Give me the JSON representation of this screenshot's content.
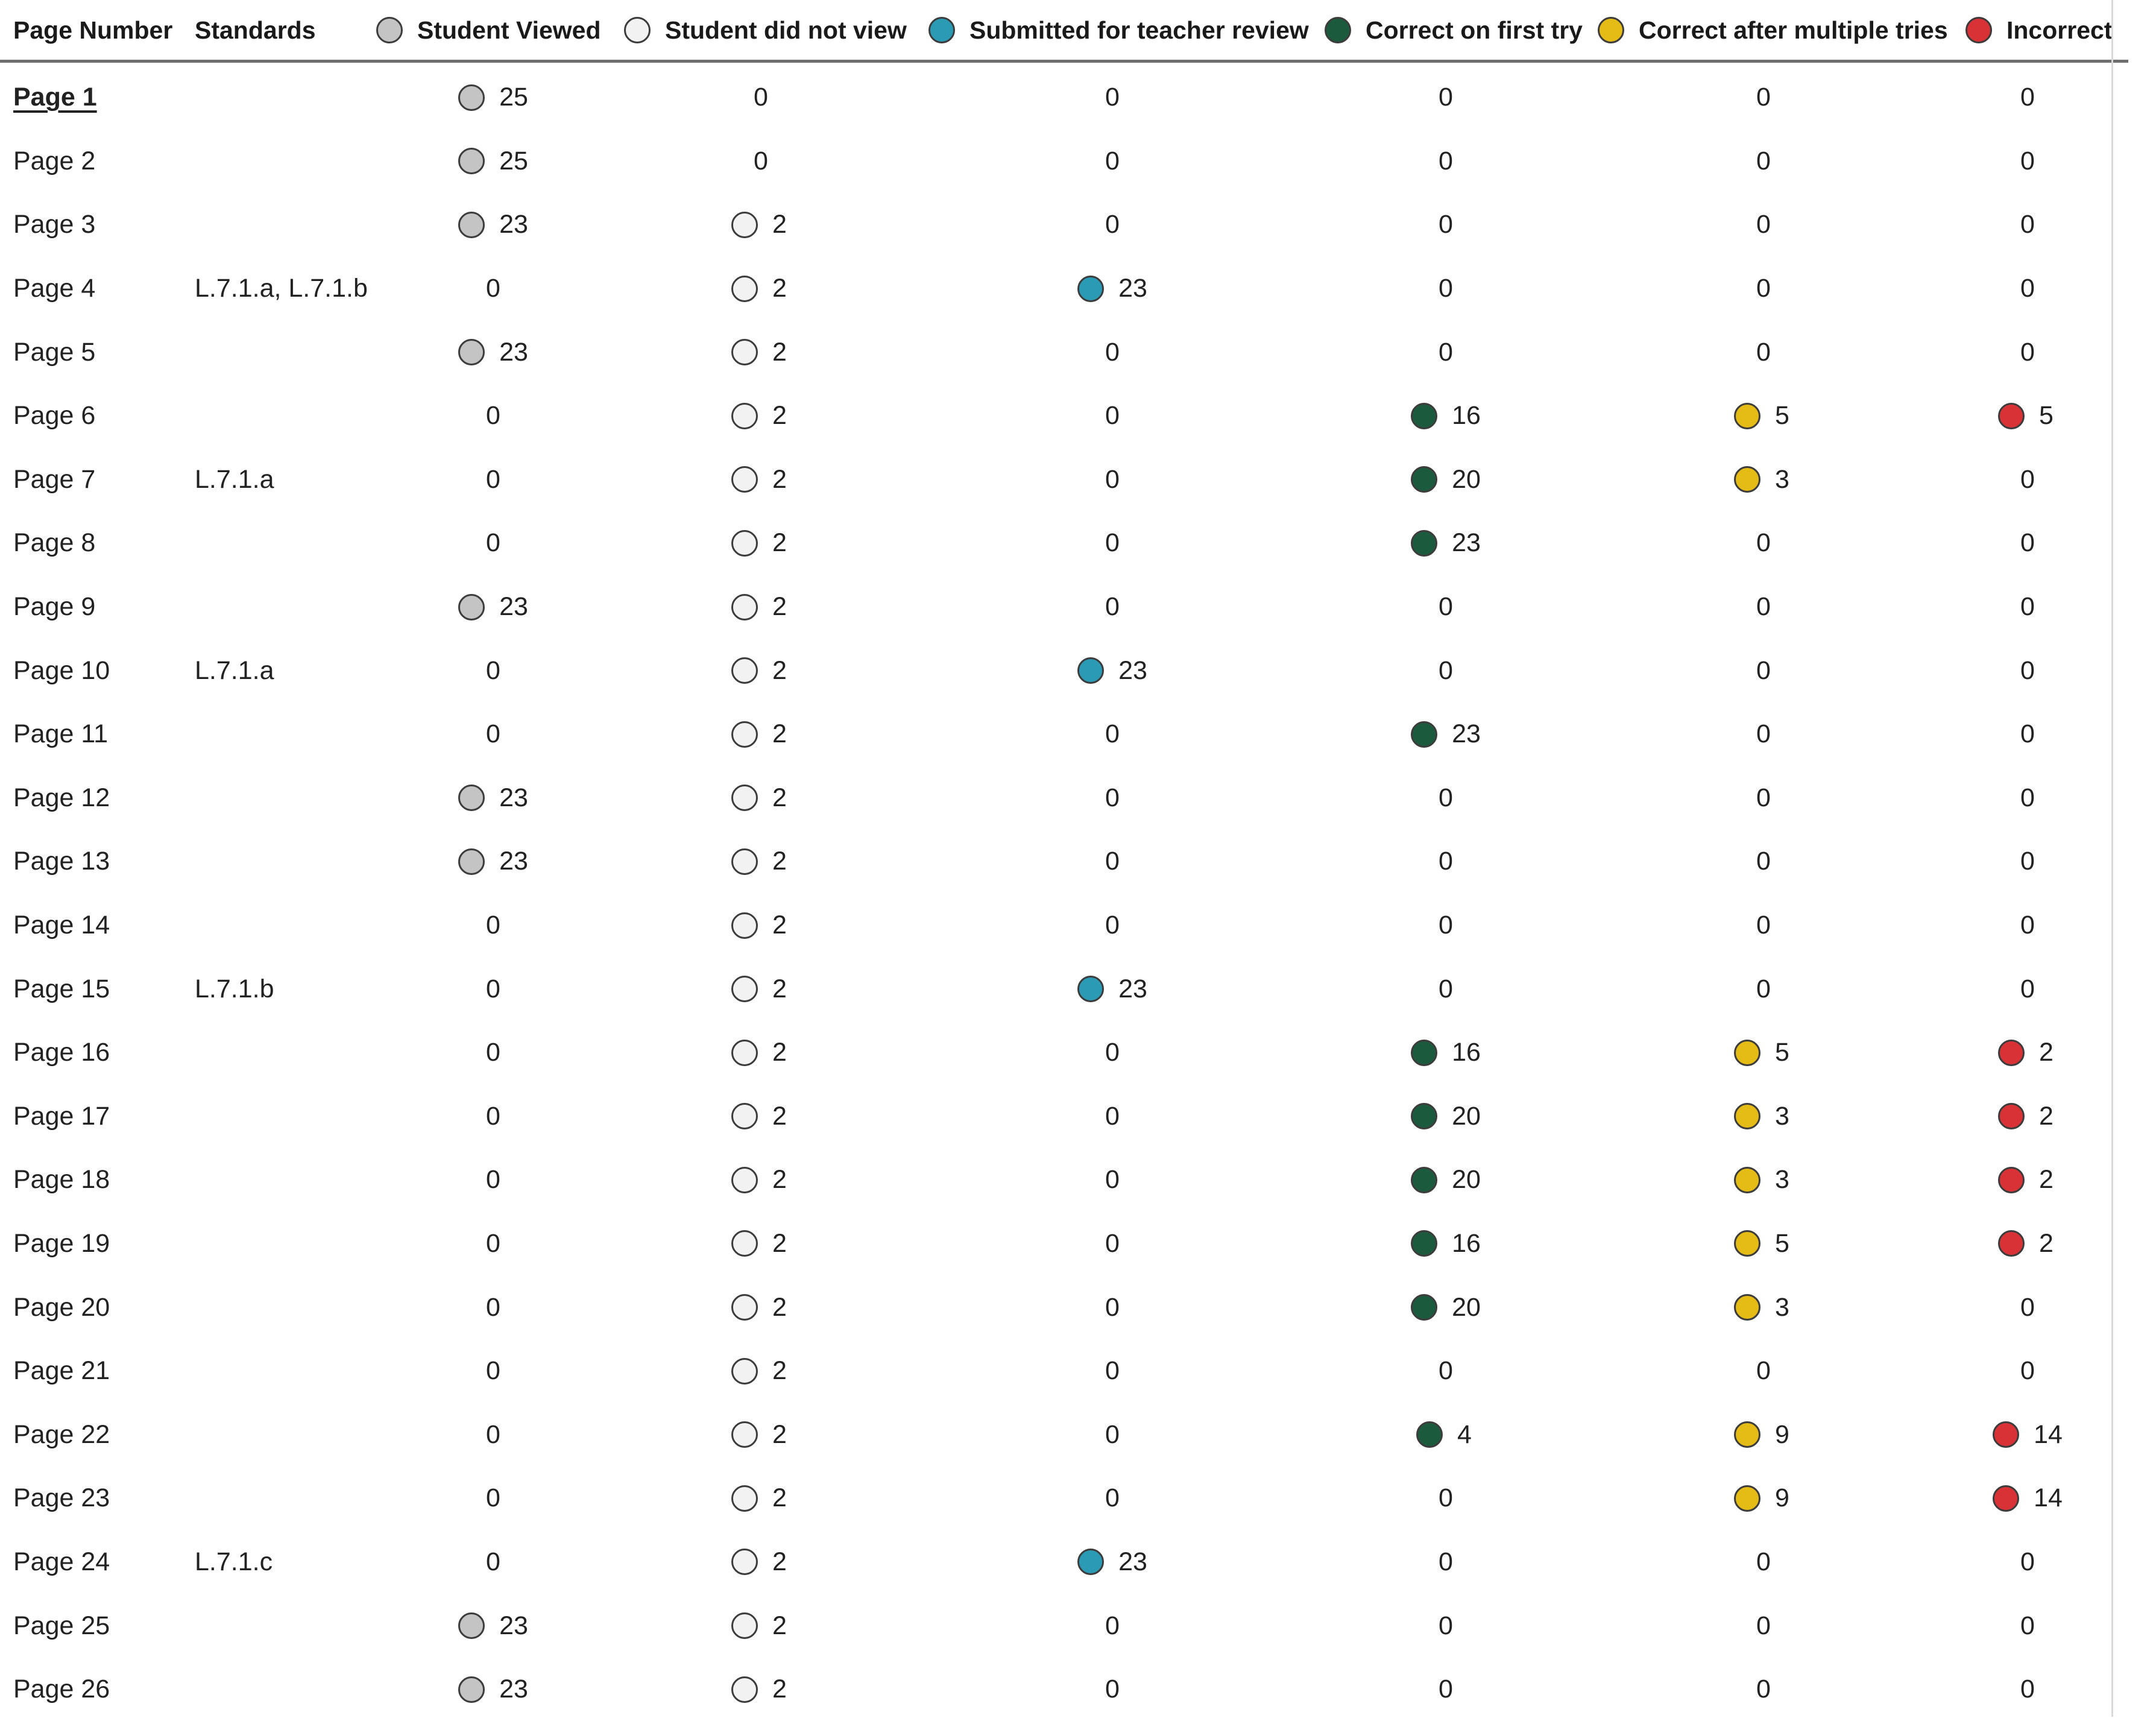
{
  "colors": {
    "viewed": "#c4c4c4",
    "not_viewed": "#f2f2f2",
    "submitted": "#2b9bb5",
    "correct_first": "#1c5a3d",
    "correct_multiple": "#e5bb16",
    "incorrect": "#d93236"
  },
  "header": {
    "page_number": "Page Number",
    "standards": "Standards",
    "legend": [
      {
        "key": "viewed",
        "label": "Student Viewed"
      },
      {
        "key": "not_viewed",
        "label": "Student did not view"
      },
      {
        "key": "submitted",
        "label": "Submitted for teacher review"
      },
      {
        "key": "correct_first",
        "label": "Correct on first try"
      },
      {
        "key": "correct_multiple",
        "label": "Correct after multiple tries"
      },
      {
        "key": "incorrect",
        "label": "Incorrect"
      }
    ]
  },
  "rows": [
    {
      "page": "Page 1",
      "standards": "",
      "active": true,
      "counts": [
        25,
        0,
        0,
        0,
        0,
        0
      ]
    },
    {
      "page": "Page 2",
      "standards": "",
      "counts": [
        25,
        0,
        0,
        0,
        0,
        0
      ]
    },
    {
      "page": "Page 3",
      "standards": "",
      "counts": [
        23,
        2,
        0,
        0,
        0,
        0
      ]
    },
    {
      "page": "Page 4",
      "standards": "L.7.1.a,  L.7.1.b",
      "counts": [
        0,
        2,
        23,
        0,
        0,
        0
      ]
    },
    {
      "page": "Page 5",
      "standards": "",
      "counts": [
        23,
        2,
        0,
        0,
        0,
        0
      ]
    },
    {
      "page": "Page 6",
      "standards": "",
      "counts": [
        0,
        2,
        0,
        16,
        5,
        5
      ]
    },
    {
      "page": "Page 7",
      "standards": "L.7.1.a",
      "counts": [
        0,
        2,
        0,
        20,
        3,
        0
      ]
    },
    {
      "page": "Page 8",
      "standards": "",
      "counts": [
        0,
        2,
        0,
        23,
        0,
        0
      ]
    },
    {
      "page": "Page 9",
      "standards": "",
      "counts": [
        23,
        2,
        0,
        0,
        0,
        0
      ]
    },
    {
      "page": "Page 10",
      "standards": "L.7.1.a",
      "counts": [
        0,
        2,
        23,
        0,
        0,
        0
      ]
    },
    {
      "page": "Page 11",
      "standards": "",
      "counts": [
        0,
        2,
        0,
        23,
        0,
        0
      ]
    },
    {
      "page": "Page 12",
      "standards": "",
      "counts": [
        23,
        2,
        0,
        0,
        0,
        0
      ]
    },
    {
      "page": "Page 13",
      "standards": "",
      "counts": [
        23,
        2,
        0,
        0,
        0,
        0
      ]
    },
    {
      "page": "Page 14",
      "standards": "",
      "counts": [
        0,
        2,
        0,
        0,
        0,
        0
      ]
    },
    {
      "page": "Page 15",
      "standards": "L.7.1.b",
      "counts": [
        0,
        2,
        23,
        0,
        0,
        0
      ]
    },
    {
      "page": "Page 16",
      "standards": "",
      "counts": [
        0,
        2,
        0,
        16,
        5,
        2
      ]
    },
    {
      "page": "Page 17",
      "standards": "",
      "counts": [
        0,
        2,
        0,
        20,
        3,
        2
      ]
    },
    {
      "page": "Page 18",
      "standards": "",
      "counts": [
        0,
        2,
        0,
        20,
        3,
        2
      ]
    },
    {
      "page": "Page 19",
      "standards": "",
      "counts": [
        0,
        2,
        0,
        16,
        5,
        2
      ]
    },
    {
      "page": "Page 20",
      "standards": "",
      "counts": [
        0,
        2,
        0,
        20,
        3,
        0
      ]
    },
    {
      "page": "Page 21",
      "standards": "",
      "counts": [
        0,
        2,
        0,
        0,
        0,
        0
      ]
    },
    {
      "page": "Page 22",
      "standards": "",
      "counts": [
        0,
        2,
        0,
        4,
        9,
        14
      ]
    },
    {
      "page": "Page 23",
      "standards": "",
      "counts": [
        0,
        2,
        0,
        0,
        9,
        14
      ]
    },
    {
      "page": "Page 24",
      "standards": "L.7.1.c",
      "counts": [
        0,
        2,
        23,
        0,
        0,
        0
      ]
    },
    {
      "page": "Page 25",
      "standards": "",
      "counts": [
        23,
        2,
        0,
        0,
        0,
        0
      ]
    },
    {
      "page": "Page 26",
      "standards": "",
      "counts": [
        23,
        2,
        0,
        0,
        0,
        0
      ]
    }
  ]
}
